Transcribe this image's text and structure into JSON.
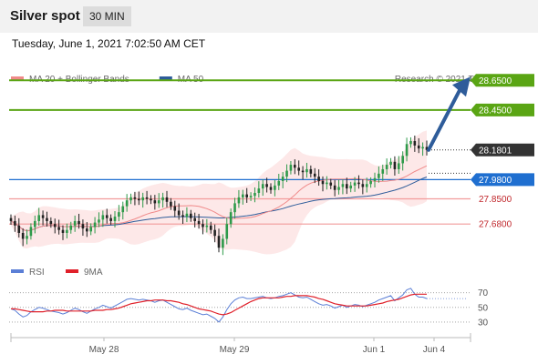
{
  "header": {
    "title": "Silver spot",
    "timeframe": "30 MIN"
  },
  "datetime": "Tuesday, June 1, 2021 7:02:50 AM CET",
  "credit": "Research © 2021 Trading Central",
  "colors": {
    "resistance": "#5aa514",
    "pivot": "#1f6fd0",
    "support": "#f29b9b",
    "support_text": "#c0262b",
    "price_tag": "#333333",
    "ma20": "#f08a8a",
    "ma50": "#2e5c9a",
    "band_fill": "#fde4e4",
    "rsi": "#5b7fd6",
    "rsi_ma": "#e0202a",
    "arrow": "#2e5c9a"
  },
  "chart_data": [
    {
      "type": "candlestick",
      "legend": [
        {
          "name": "MA 20 + Bollinger Bands",
          "color": "#f08a8a"
        },
        {
          "name": "MA 50",
          "color": "#2e5c9a"
        }
      ],
      "x_labels": [
        "May 28",
        "May 29",
        "Jun 1",
        "Jun 4"
      ],
      "ylim": [
        27.46,
        28.75
      ],
      "current_price": 28.1801,
      "levels": [
        {
          "label": "28.6500",
          "value": 28.65,
          "kind": "resistance"
        },
        {
          "label": "28.4500",
          "value": 28.45,
          "kind": "resistance"
        },
        {
          "label": "27.9800",
          "value": 27.98,
          "kind": "pivot"
        },
        {
          "label": "27.8500",
          "value": 27.85,
          "kind": "support"
        },
        {
          "label": "27.6800",
          "value": 27.68,
          "kind": "support"
        }
      ],
      "price_tag": "28.1801",
      "closes": [
        27.7,
        27.67,
        27.62,
        27.58,
        27.6,
        27.66,
        27.7,
        27.74,
        27.72,
        27.7,
        27.68,
        27.66,
        27.64,
        27.62,
        27.64,
        27.67,
        27.7,
        27.68,
        27.65,
        27.63,
        27.66,
        27.69,
        27.71,
        27.74,
        27.72,
        27.7,
        27.73,
        27.76,
        27.8,
        27.84,
        27.86,
        27.85,
        27.84,
        27.86,
        27.85,
        27.84,
        27.82,
        27.84,
        27.86,
        27.83,
        27.8,
        27.77,
        27.74,
        27.73,
        27.75,
        27.72,
        27.7,
        27.68,
        27.66,
        27.67,
        27.64,
        27.6,
        27.52,
        27.58,
        27.68,
        27.76,
        27.82,
        27.86,
        27.88,
        27.86,
        27.87,
        27.89,
        27.92,
        27.95,
        27.93,
        27.91,
        27.94,
        27.97,
        28.0,
        28.04,
        28.08,
        28.06,
        28.04,
        28.03,
        28.05,
        28.02,
        28.0,
        27.97,
        27.95,
        27.96,
        27.94,
        27.91,
        27.93,
        27.95,
        27.92,
        27.94,
        27.96,
        27.95,
        27.93,
        27.95,
        27.97,
        27.99,
        28.02,
        28.05,
        28.08,
        28.1,
        28.05,
        28.09,
        28.14,
        28.22,
        28.24,
        28.21,
        28.19,
        28.2,
        28.18
      ]
    },
    {
      "type": "line",
      "legend": [
        {
          "name": "RSI",
          "color": "#5b7fd6"
        },
        {
          "name": "9MA",
          "color": "#e0202a"
        }
      ],
      "ylim": [
        20,
        82
      ],
      "y_ticks": [
        70,
        50,
        30
      ],
      "rsi": [
        48,
        46,
        41,
        37,
        39,
        44,
        47,
        50,
        49,
        47,
        45,
        44,
        43,
        41,
        43,
        46,
        49,
        47,
        44,
        42,
        45,
        48,
        50,
        53,
        51,
        49,
        52,
        55,
        58,
        61,
        62,
        61,
        60,
        61,
        60,
        59,
        57,
        59,
        60,
        57,
        54,
        51,
        48,
        47,
        49,
        46,
        44,
        42,
        40,
        41,
        38,
        35,
        30,
        37,
        47,
        55,
        60,
        63,
        64,
        62,
        62,
        63,
        64,
        65,
        63,
        62,
        63,
        65,
        66,
        68,
        70,
        67,
        64,
        63,
        64,
        61,
        58,
        55,
        53,
        54,
        52,
        49,
        51,
        53,
        50,
        52,
        54,
        53,
        51,
        53,
        55,
        57,
        60,
        62,
        64,
        66,
        59,
        63,
        67,
        74,
        76,
        68,
        64,
        64,
        62
      ],
      "rsi_ma": [
        48,
        48,
        47,
        46,
        45,
        44,
        44,
        44,
        44,
        45,
        45,
        46,
        46,
        46,
        45,
        45,
        45,
        45,
        45,
        45,
        45,
        46,
        46,
        46,
        47,
        47,
        48,
        49,
        51,
        53,
        55,
        56,
        57,
        58,
        59,
        59,
        60,
        60,
        60,
        59,
        59,
        58,
        57,
        55,
        54,
        52,
        50,
        48,
        47,
        46,
        45,
        43,
        41,
        40,
        41,
        43,
        46,
        49,
        52,
        55,
        58,
        60,
        62,
        63,
        63,
        63,
        63,
        63,
        64,
        65,
        65,
        66,
        66,
        66,
        66,
        65,
        64,
        62,
        61,
        59,
        57,
        55,
        54,
        53,
        52,
        52,
        52,
        52,
        52,
        52,
        53,
        54,
        55,
        56,
        58,
        59,
        60,
        61,
        63,
        65,
        67,
        68,
        68,
        68,
        68
      ]
    }
  ]
}
